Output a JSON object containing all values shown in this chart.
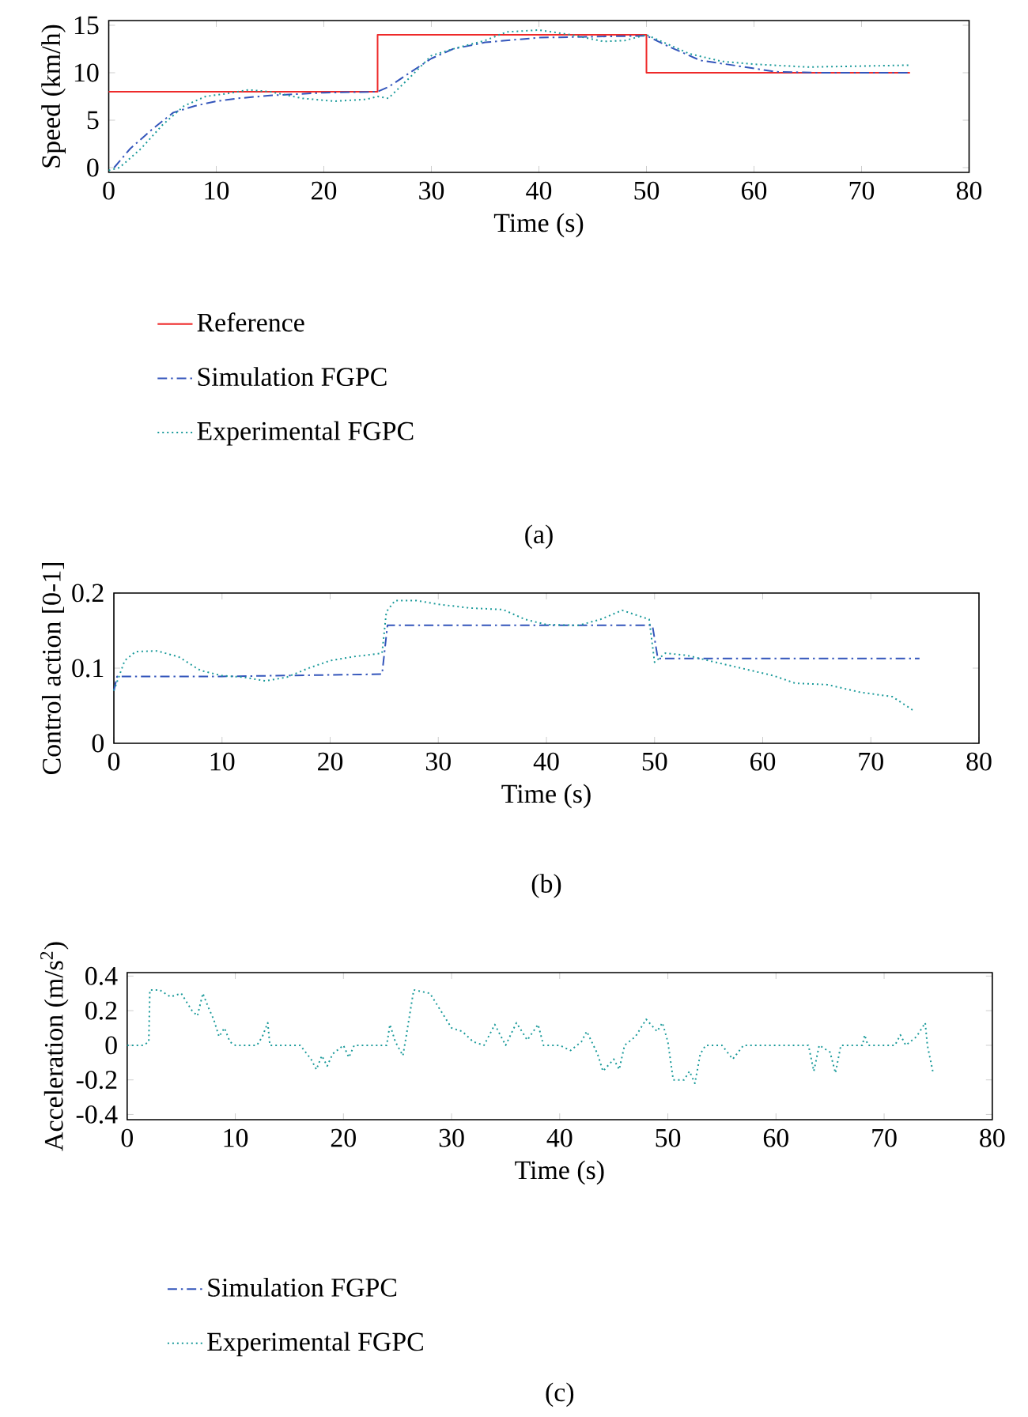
{
  "chart_data": [
    {
      "type": "line",
      "xlabel": "Time (s)",
      "ylabel": "Speed (km/h)",
      "xlim": [
        0,
        80
      ],
      "ylim": [
        -0.5,
        15.5
      ],
      "xticks": [
        0,
        10,
        20,
        30,
        40,
        50,
        60,
        70,
        80
      ],
      "yticks": [
        0,
        5,
        10,
        15
      ],
      "legend": "bottom",
      "annotations": [
        "(a)"
      ],
      "series": [
        {
          "name": "Reference",
          "type": "step",
          "color": "#ee2a2a",
          "line_style": "solid",
          "x": [
            0,
            25,
            50,
            74.5
          ],
          "values": [
            8,
            14,
            10,
            10
          ]
        },
        {
          "name": "Simulation FGPC",
          "color": "#3355bb",
          "line_style": "dashdot",
          "x": [
            0.5,
            2,
            4,
            6,
            8,
            10,
            12,
            15,
            20,
            25,
            26,
            28,
            30,
            32,
            35,
            40,
            45,
            50,
            52,
            55,
            58,
            62,
            66,
            70,
            74.5
          ],
          "values": [
            0,
            2,
            4,
            5.8,
            6.5,
            7,
            7.3,
            7.6,
            7.9,
            8,
            8.5,
            10,
            11.5,
            12.5,
            13.2,
            13.7,
            13.8,
            13.9,
            12.8,
            11.3,
            10.8,
            10.1,
            10,
            10,
            10
          ]
        },
        {
          "name": "Experimental FGPC",
          "color": "#1a9a9a",
          "line_style": "dotted",
          "x": [
            0,
            1,
            3,
            5,
            7,
            9,
            11,
            13,
            15,
            18,
            21,
            24,
            25,
            26,
            28,
            30,
            32,
            35,
            37,
            40,
            43,
            46,
            48,
            50,
            52,
            54,
            57,
            60,
            65,
            70,
            74.5
          ],
          "values": [
            -0.3,
            0,
            2,
            4.5,
            6.5,
            7.5,
            7.8,
            8.2,
            8,
            7.3,
            7,
            7.2,
            7.5,
            7.3,
            9.5,
            11.8,
            12.5,
            13.4,
            14.3,
            14.5,
            14,
            13.3,
            13.4,
            14,
            13,
            12,
            11.2,
            10.9,
            10.6,
            10.7,
            10.8
          ]
        }
      ]
    },
    {
      "type": "line",
      "xlabel": "Time (s)",
      "ylabel": "Control action [0-1]",
      "xlim": [
        0,
        80
      ],
      "ylim": [
        0,
        0.2
      ],
      "xticks": [
        0,
        10,
        20,
        30,
        40,
        50,
        60,
        70,
        80
      ],
      "yticks": [
        0,
        0.1,
        0.2
      ],
      "annotations": [
        "(b)"
      ],
      "series": [
        {
          "color": "#3355bb",
          "line_style": "dashdot",
          "x": [
            0,
            0.3,
            10,
            24.8,
            25.3,
            49.8,
            50.3,
            74.5
          ],
          "values": [
            0.07,
            0.089,
            0.089,
            0.092,
            0.157,
            0.157,
            0.113,
            0.113
          ]
        },
        {
          "color": "#1a9a9a",
          "line_style": "dotted",
          "x": [
            0,
            1,
            2,
            4,
            6,
            8,
            10,
            12,
            14,
            16,
            18,
            20,
            22,
            24.8,
            25.2,
            26,
            28,
            30,
            33,
            36,
            38,
            40,
            43,
            45,
            47,
            49.5,
            50,
            51,
            53,
            55,
            58,
            61,
            63,
            66,
            69,
            72,
            74
          ],
          "values": [
            0.07,
            0.11,
            0.122,
            0.123,
            0.115,
            0.097,
            0.09,
            0.088,
            0.083,
            0.088,
            0.1,
            0.11,
            0.115,
            0.12,
            0.175,
            0.19,
            0.19,
            0.185,
            0.18,
            0.178,
            0.165,
            0.158,
            0.157,
            0.165,
            0.177,
            0.165,
            0.108,
            0.12,
            0.117,
            0.11,
            0.1,
            0.09,
            0.08,
            0.078,
            0.068,
            0.062,
            0.043
          ]
        }
      ]
    },
    {
      "type": "line",
      "xlabel": "Time (s)",
      "ylabel": "Acceleration (m/s$^{2}$)",
      "xlim": [
        0,
        80
      ],
      "ylim": [
        -0.43,
        0.42
      ],
      "xticks": [
        0,
        10,
        20,
        30,
        40,
        50,
        60,
        70,
        80
      ],
      "yticks": [
        -0.4,
        -0.2,
        0,
        0.2,
        0.4
      ],
      "legend": "bottom",
      "annotations": [
        "(c)"
      ],
      "series": [
        {
          "name": "Simulation FGPC",
          "color": "#3355bb",
          "line_style": "dashdot",
          "values": [
            null
          ]
        },
        {
          "name": "Experimental FGPC",
          "color": "#1a9a9a",
          "line_style": "dotted",
          "x": [
            0,
            1.5,
            2,
            2.1,
            3,
            4,
            5,
            6,
            6.5,
            7,
            7.5,
            8,
            8.5,
            9,
            9.5,
            10,
            12,
            12.5,
            13,
            13.2,
            16,
            17,
            17.5,
            18,
            18.5,
            19,
            20,
            20.5,
            21,
            24,
            24.3,
            24.8,
            25.5,
            25.8,
            26.5,
            28,
            29,
            30,
            31,
            32,
            33,
            34,
            35,
            36,
            37,
            38,
            38.5,
            40,
            41,
            42,
            42.5,
            43.5,
            44,
            45,
            45.5,
            46,
            47,
            48,
            49,
            49.5,
            50,
            50.5,
            51.5,
            52,
            52.5,
            53,
            53.5,
            55,
            56,
            57,
            63,
            63.5,
            64,
            65,
            65.5,
            66,
            68,
            68.2,
            68.5,
            71,
            71.5,
            72,
            73,
            73.8,
            74,
            74.5
          ],
          "values": [
            0,
            0,
            0.02,
            0.32,
            0.32,
            0.28,
            0.3,
            0.2,
            0.17,
            0.3,
            0.22,
            0.15,
            0.05,
            0.1,
            0.02,
            0,
            0,
            0.05,
            0.13,
            0,
            0,
            -0.08,
            -0.14,
            -0.06,
            -0.12,
            -0.05,
            0,
            -0.07,
            0,
            0,
            0.12,
            0.02,
            -0.06,
            0.05,
            0.32,
            0.3,
            0.2,
            0.1,
            0.08,
            0.02,
            0,
            0.12,
            0,
            0.13,
            0.03,
            0.12,
            0,
            0,
            -0.03,
            0.02,
            0.08,
            -0.05,
            -0.15,
            -0.08,
            -0.14,
            0,
            0.05,
            0.15,
            0.08,
            0.13,
            0.02,
            -0.2,
            -0.2,
            -0.15,
            -0.22,
            -0.05,
            0,
            0,
            -0.08,
            0,
            0,
            -0.15,
            0,
            -0.04,
            -0.16,
            0,
            0,
            0.06,
            0,
            0,
            0.06,
            0,
            0.05,
            0.13,
            0,
            -0.15
          ]
        }
      ]
    }
  ]
}
